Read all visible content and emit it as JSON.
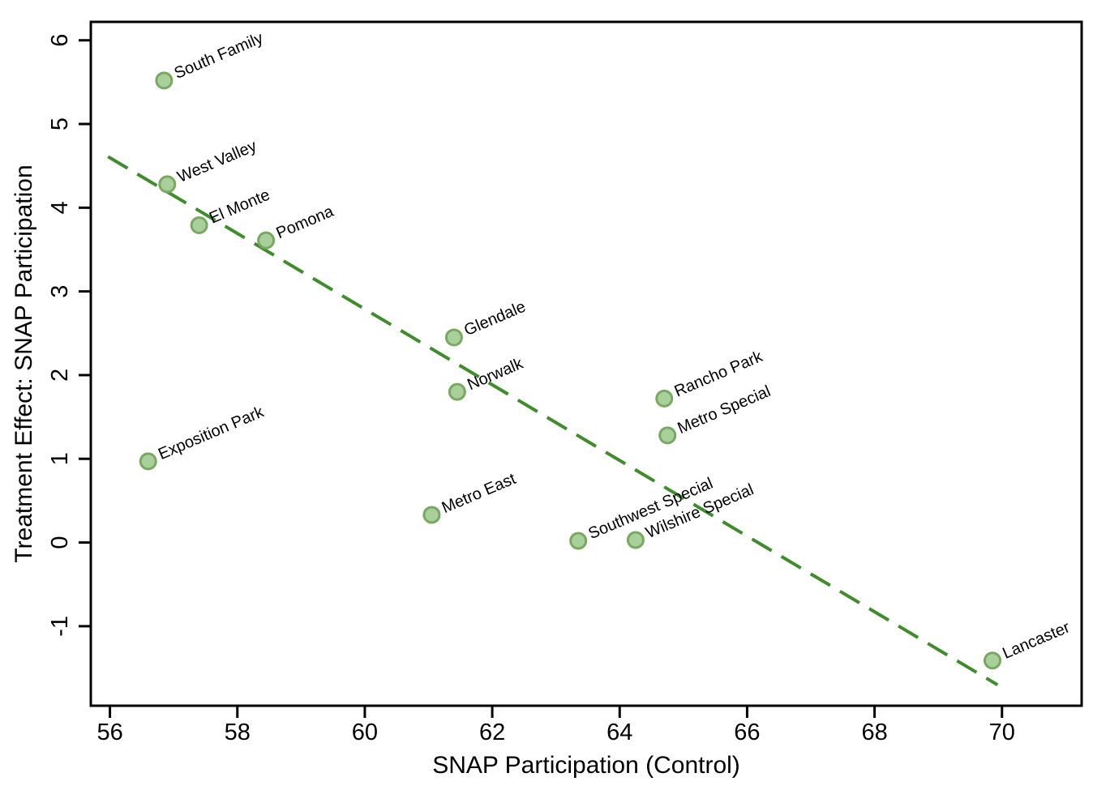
{
  "figure": {
    "background_color": "#ffffff",
    "border_color": "#000000"
  },
  "chart_data": {
    "type": "scatter",
    "title": "",
    "xlabel": "SNAP Participation (Control)",
    "ylabel": "Treatment Effect: SNAP Participation",
    "xlim": [
      55.7,
      71.25
    ],
    "ylim": [
      -1.95,
      6.22
    ],
    "x_ticks": [
      56,
      58,
      60,
      62,
      64,
      66,
      68,
      70
    ],
    "y_ticks": [
      -1,
      0,
      1,
      2,
      3,
      4,
      5,
      6
    ],
    "grid": false,
    "legend": false,
    "points": [
      {
        "label": "South Family",
        "x": 56.85,
        "y": 5.52
      },
      {
        "label": "West Valley",
        "x": 56.9,
        "y": 4.28
      },
      {
        "label": "El Monte",
        "x": 57.4,
        "y": 3.79
      },
      {
        "label": "Pomona",
        "x": 58.45,
        "y": 3.61
      },
      {
        "label": "Glendale",
        "x": 61.4,
        "y": 2.45
      },
      {
        "label": "Norwalk",
        "x": 61.45,
        "y": 1.8
      },
      {
        "label": "Exposition Park",
        "x": 56.6,
        "y": 0.97
      },
      {
        "label": "Rancho Park",
        "x": 64.7,
        "y": 1.72
      },
      {
        "label": "Metro Special",
        "x": 64.75,
        "y": 1.28
      },
      {
        "label": "Metro East",
        "x": 61.05,
        "y": 0.33
      },
      {
        "label": "Southwest Special",
        "x": 63.35,
        "y": 0.02
      },
      {
        "label": "Wilshire Special",
        "x": 64.25,
        "y": 0.03
      },
      {
        "label": "Lancaster",
        "x": 69.85,
        "y": -1.41
      }
    ],
    "trend_line": {
      "style": "dashed",
      "x1": 55.97,
      "y1": 4.61,
      "x2": 69.93,
      "y2": -1.7
    },
    "style": {
      "marker_fill": "#a9cf9a",
      "marker_stroke": "#79a861",
      "line_color": "#3e8c2a",
      "label_color": "#000000",
      "axis_color": "#000000",
      "point_label_angle_deg": -23
    }
  }
}
